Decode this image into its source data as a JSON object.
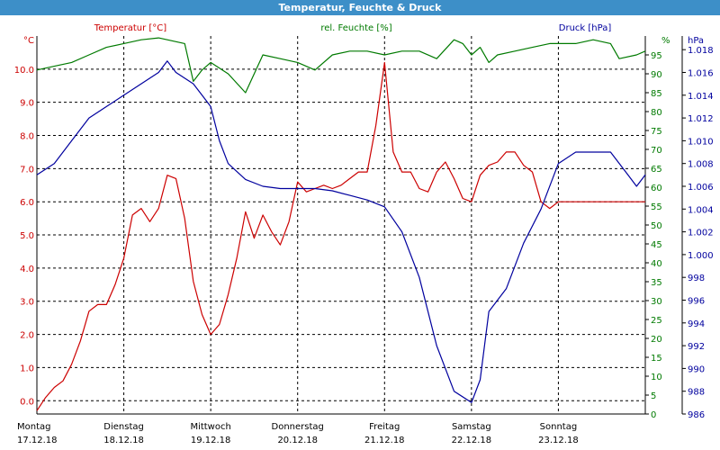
{
  "window": {
    "title": "Temperatur, Feuchte & Druck"
  },
  "colors": {
    "temperature": "#cc0000",
    "humidity": "#007a00",
    "pressure": "#00009e",
    "grid": "#000000",
    "titlebar": "#3d8fc8"
  },
  "chart_data": {
    "type": "line",
    "title": "Temperatur, Feuchte & Druck",
    "grid": true,
    "legend_position": "top",
    "x_range": [
      0,
      7
    ],
    "x_unit_note": "",
    "days": [
      {
        "weekday": "Montag",
        "date": "17.12.18"
      },
      {
        "weekday": "Dienstag",
        "date": "18.12.18"
      },
      {
        "weekday": "Mittwoch",
        "date": "19.12.18"
      },
      {
        "weekday": "Donnerstag",
        "date": "20.12.18"
      },
      {
        "weekday": "Freitag",
        "date": "21.12.18"
      },
      {
        "weekday": "Samstag",
        "date": "22.12.18"
      },
      {
        "weekday": "Sonntag",
        "date": "23.12.18"
      }
    ],
    "axes": {
      "left": {
        "unit": "°C",
        "range": [
          -0.4,
          11.0
        ],
        "ticks": [
          0.0,
          1.0,
          2.0,
          3.0,
          4.0,
          5.0,
          6.0,
          7.0,
          8.0,
          9.0,
          10.0
        ],
        "tick_labels": [
          "0.0",
          "1.0",
          "2.0",
          "3.0",
          "4.0",
          "5.0",
          "6.0",
          "7.0",
          "8.0",
          "9.0",
          "10.0"
        ]
      },
      "mid": {
        "unit": "%",
        "range": [
          0,
          100
        ],
        "ticks": [
          0,
          5,
          10,
          15,
          20,
          25,
          30,
          35,
          40,
          45,
          50,
          55,
          60,
          65,
          70,
          75,
          80,
          85,
          90,
          95
        ],
        "tick_labels": [
          "0",
          "5",
          "10",
          "15",
          "20",
          "25",
          "30",
          "35",
          "40",
          "45",
          "50",
          "55",
          "60",
          "65",
          "70",
          "75",
          "80",
          "85",
          "90",
          "95"
        ],
        "top_label": "%"
      },
      "right": {
        "unit": "hPa",
        "range": [
          986,
          1019.2
        ],
        "ticks": [
          986,
          988,
          990,
          992,
          994,
          996,
          998,
          1000,
          1002,
          1004,
          1006,
          1008,
          1010,
          1012,
          1014,
          1016,
          1018
        ],
        "tick_labels": [
          "986",
          "988",
          "990",
          "992",
          "994",
          "996",
          "998",
          "1.000",
          "1.002",
          "1.004",
          "1.006",
          "1.008",
          "1.010",
          "1.012",
          "1.014",
          "1.016",
          "1.018"
        ]
      }
    },
    "series": [
      {
        "name": "Temperatur [°C]",
        "axis": "left",
        "x": [
          0,
          0.1,
          0.2,
          0.3,
          0.4,
          0.5,
          0.6,
          0.7,
          0.8,
          0.9,
          1.0,
          1.1,
          1.2,
          1.3,
          1.4,
          1.5,
          1.6,
          1.7,
          1.8,
          1.9,
          2.0,
          2.1,
          2.2,
          2.3,
          2.4,
          2.5,
          2.6,
          2.7,
          2.8,
          2.9,
          3.0,
          3.1,
          3.2,
          3.3,
          3.4,
          3.5,
          3.6,
          3.7,
          3.8,
          3.9,
          4.0,
          4.1,
          4.2,
          4.3,
          4.4,
          4.5,
          4.6,
          4.7,
          4.8,
          4.9,
          5.0,
          5.1,
          5.2,
          5.3,
          5.4,
          5.5,
          5.6,
          5.7,
          5.8,
          5.9,
          6.0,
          6.1,
          6.2,
          6.3,
          6.4,
          6.5,
          6.6,
          6.7,
          6.8,
          6.9,
          7.0
        ],
        "y": [
          -0.3,
          0.1,
          0.4,
          0.6,
          1.1,
          1.8,
          2.7,
          2.9,
          2.9,
          3.5,
          4.3,
          5.6,
          5.8,
          5.4,
          5.8,
          6.8,
          6.7,
          5.5,
          3.6,
          2.6,
          2.0,
          2.3,
          3.2,
          4.3,
          5.7,
          4.9,
          5.6,
          5.1,
          4.7,
          5.4,
          6.6,
          6.3,
          6.4,
          6.5,
          6.4,
          6.5,
          6.7,
          6.9,
          6.9,
          8.3,
          10.2,
          7.5,
          6.9,
          6.9,
          6.4,
          6.3,
          6.9,
          7.2,
          6.7,
          6.1,
          6.0,
          6.8,
          7.1,
          7.2,
          7.5,
          7.5,
          7.1,
          6.9,
          6.0,
          5.8,
          6.0,
          6.0,
          6.0,
          6.0,
          6.0,
          6.0,
          6.0,
          6.0,
          6.0,
          6.0,
          6.0
        ]
      },
      {
        "name": "rel. Feuchte [%]",
        "axis": "mid",
        "x": [
          0,
          0.2,
          0.4,
          0.6,
          0.8,
          1.0,
          1.2,
          1.4,
          1.5,
          1.7,
          1.8,
          1.9,
          2.0,
          2.2,
          2.4,
          2.6,
          2.8,
          3.0,
          3.2,
          3.4,
          3.6,
          3.8,
          4.0,
          4.2,
          4.4,
          4.6,
          4.8,
          4.9,
          5.0,
          5.1,
          5.2,
          5.3,
          5.5,
          5.7,
          5.9,
          6.0,
          6.2,
          6.4,
          6.6,
          6.7,
          6.9,
          7.0
        ],
        "y": [
          91,
          92,
          93,
          95,
          97,
          98,
          99,
          99.5,
          99,
          98,
          88,
          91,
          93,
          90,
          85,
          95,
          94,
          93,
          91,
          95,
          96,
          96,
          95,
          96,
          96,
          94,
          99,
          98,
          95,
          97,
          93,
          95,
          96,
          97,
          98,
          98,
          98,
          99,
          98,
          94,
          95,
          96
        ]
      },
      {
        "name": "Druck [hPa]",
        "axis": "right",
        "x": [
          0,
          0.2,
          0.4,
          0.6,
          0.8,
          1.0,
          1.2,
          1.4,
          1.5,
          1.6,
          1.8,
          1.9,
          2.0,
          2.1,
          2.2,
          2.4,
          2.6,
          2.8,
          3.0,
          3.2,
          3.4,
          3.6,
          3.8,
          4.0,
          4.2,
          4.4,
          4.6,
          4.8,
          5.0,
          5.1,
          5.2,
          5.3,
          5.4,
          5.6,
          5.8,
          6.0,
          6.2,
          6.4,
          6.6,
          6.8,
          6.9,
          7.0
        ],
        "y": [
          1007,
          1008,
          1010,
          1012,
          1013,
          1014,
          1015,
          1016,
          1017,
          1016,
          1015,
          1014,
          1013,
          1010,
          1008,
          1006.6,
          1006,
          1005.8,
          1005.8,
          1005.8,
          1005.6,
          1005.2,
          1004.8,
          1004.2,
          1002,
          998,
          992,
          988,
          987,
          989,
          995,
          996,
          997,
          1001,
          1004,
          1008,
          1009,
          1009,
          1009,
          1007,
          1006,
          1007
        ]
      }
    ]
  }
}
